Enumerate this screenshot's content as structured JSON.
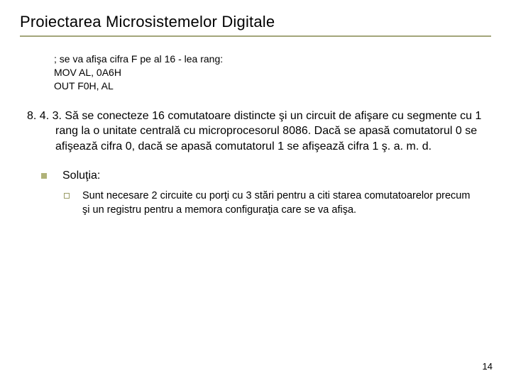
{
  "title": "Proiectarea Microsistemelor Digitale",
  "code": {
    "line1": " ; se va afişa cifra F pe al 16 - lea rang:",
    "line2": "MOV AL, 0A6H",
    "line3": "OUT F0H, AL"
  },
  "section": {
    "text": "8. 4. 3. Să se conecteze 16 comutatoare distincte şi un circuit de afişare cu segmente cu 1 rang la o unitate centrală cu microprocesorul 8086. Dacă se apasă comutatorul 0 se afişează cifra 0, dacă se apasă comutatorul 1 se afişează cifra 1 ş. a. m. d."
  },
  "bullet": {
    "label": "Soluţia:"
  },
  "sub": {
    "text": "Sunt necesare 2 circuite cu porţi cu 3 stări pentru a citi starea comutatoarelor precum şi un registru pentru a memora configuraţia care se va afişa."
  },
  "page_number": "14",
  "colors": {
    "rule": "#a3a57a",
    "square_fill": "#b0b278",
    "square_border": "#9a9c66",
    "background": "#ffffff",
    "text": "#000000"
  },
  "fonts": {
    "title_size_pt": 17,
    "body_size_pt": 12,
    "code_size_pt": 11,
    "sub_size_pt": 11
  }
}
